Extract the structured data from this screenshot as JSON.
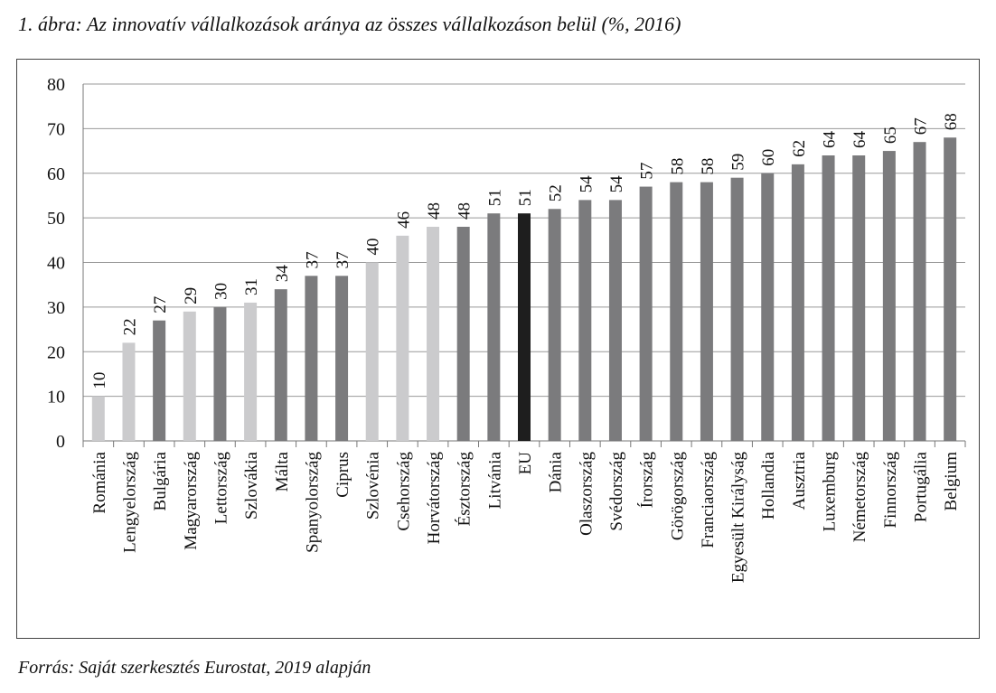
{
  "title": "1. ábra: Az innovatív vállalkozások aránya az összes vállalkozáson belül (%, 2016)",
  "source": "Forrás: Saját szerkesztés Eurostat, 2019 alapján",
  "chart_data": {
    "type": "bar",
    "title": "1. ábra: Az innovatív vállalkozások aránya az összes vállalkozáson belül (%, 2016)",
    "categories": [
      "Románia",
      "Lengyelország",
      "Bulgária",
      "Magyarország",
      "Lettország",
      "Szlovákia",
      "Málta",
      "Spanyolország",
      "Ciprus",
      "Szlovénia",
      "Csehország",
      "Horvátország",
      "Észtország",
      "Litvánia",
      "EU",
      "Dánia",
      "Olaszország",
      "Svédország",
      "Írország",
      "Görögország",
      "Franciaország",
      "Egyesült Királyság",
      "Hollandia",
      "Ausztria",
      "Luxemburg",
      "Németország",
      "Finnország",
      "Portugália",
      "Belgium"
    ],
    "values": [
      10,
      22,
      27,
      29,
      30,
      31,
      34,
      37,
      37,
      40,
      46,
      48,
      48,
      51,
      51,
      52,
      54,
      54,
      57,
      58,
      58,
      59,
      60,
      62,
      64,
      64,
      65,
      67,
      68
    ],
    "bar_groups": [
      "light",
      "light",
      "dark",
      "light",
      "dark",
      "light",
      "dark",
      "dark",
      "dark",
      "light",
      "light",
      "light",
      "dark",
      "dark",
      "eu",
      "dark",
      "dark",
      "dark",
      "dark",
      "dark",
      "dark",
      "dark",
      "dark",
      "dark",
      "dark",
      "dark",
      "dark",
      "dark",
      "dark"
    ],
    "colors": {
      "light": "#cbcbcd",
      "dark": "#7b7b7d",
      "eu": "#1e1e1e"
    },
    "ylim": [
      0,
      80
    ],
    "yticks": [
      0,
      10,
      20,
      30,
      40,
      50,
      60,
      70,
      80
    ],
    "xlabel": "",
    "ylabel": "",
    "grid": true,
    "data_labels": true
  }
}
